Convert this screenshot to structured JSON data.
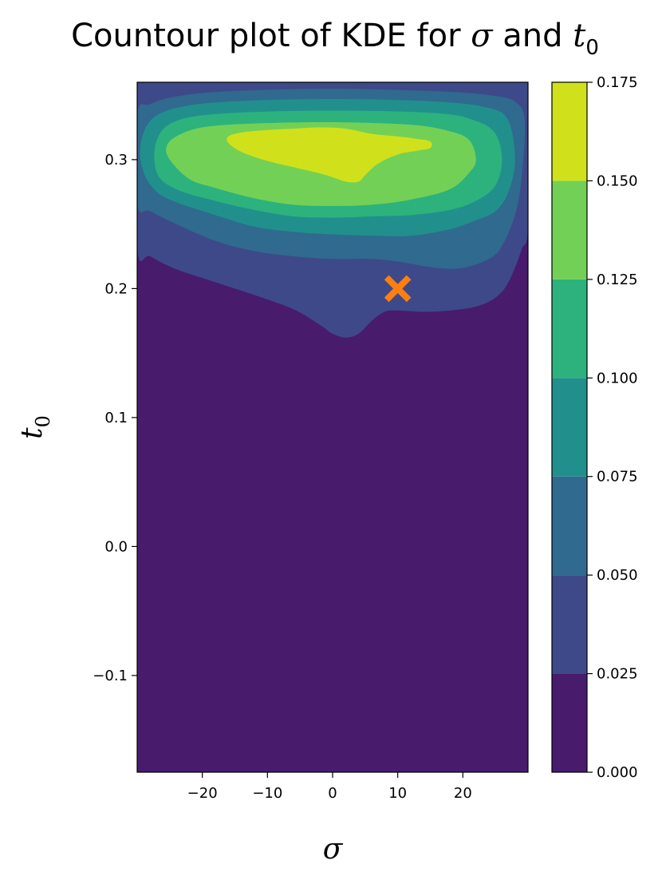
{
  "chart_data": {
    "type": "contour",
    "title": {
      "text": "Countour plot of KDE for ",
      "symbol_1": "σ",
      "connector": " and ",
      "symbol_2": "t",
      "symbol_2_subscript": "0"
    },
    "xlabel": "σ",
    "ylabel": {
      "symbol": "t",
      "subscript": "0"
    },
    "xlim": [
      -30,
      30
    ],
    "ylim": [
      -0.175,
      0.36
    ],
    "x_ticks": [
      {
        "value": -20,
        "label": "−20"
      },
      {
        "value": -10,
        "label": "−10"
      },
      {
        "value": 0,
        "label": "0"
      },
      {
        "value": 10,
        "label": "10"
      },
      {
        "value": 20,
        "label": "20"
      }
    ],
    "y_ticks": [
      {
        "value": -0.1,
        "label": "−0.1"
      },
      {
        "value": 0.0,
        "label": "0.0"
      },
      {
        "value": 0.1,
        "label": "0.1"
      },
      {
        "value": 0.2,
        "label": "0.2"
      },
      {
        "value": 0.3,
        "label": "0.3"
      }
    ],
    "colorbar": {
      "levels": [
        0.0,
        0.025,
        0.05,
        0.075,
        0.1,
        0.125,
        0.15,
        0.175
      ],
      "labels": [
        "0.000",
        "0.025",
        "0.050",
        "0.075",
        "0.100",
        "0.125",
        "0.150",
        "0.175"
      ],
      "colors": [
        "#481b6d",
        "#3e4989",
        "#306a8e",
        "#21908d",
        "#2db27d",
        "#73d056",
        "#d0e11c"
      ]
    },
    "contours": [
      {
        "level": 0.025,
        "points": [
          [
            -30,
            0.233
          ],
          [
            -28,
            0.225
          ],
          [
            -24,
            0.215
          ],
          [
            -18,
            0.205
          ],
          [
            -12,
            0.195
          ],
          [
            -6,
            0.184
          ],
          [
            -2,
            0.172
          ],
          [
            0,
            0.165
          ],
          [
            2,
            0.162
          ],
          [
            4,
            0.165
          ],
          [
            6,
            0.175
          ],
          [
            8,
            0.182
          ],
          [
            10,
            0.183
          ],
          [
            14,
            0.182
          ],
          [
            18,
            0.183
          ],
          [
            22,
            0.186
          ],
          [
            25,
            0.193
          ],
          [
            27,
            0.205
          ],
          [
            29,
            0.23
          ],
          [
            30,
            0.25
          ],
          [
            30,
            0.36
          ],
          [
            -30,
            0.36
          ]
        ]
      },
      {
        "level": 0.05,
        "points": [
          [
            -30,
            0.266
          ],
          [
            -28,
            0.26
          ],
          [
            -24,
            0.25
          ],
          [
            -18,
            0.237
          ],
          [
            -12,
            0.229
          ],
          [
            -6,
            0.225
          ],
          [
            0,
            0.223
          ],
          [
            6,
            0.223
          ],
          [
            10,
            0.221
          ],
          [
            16,
            0.216
          ],
          [
            20,
            0.216
          ],
          [
            24,
            0.223
          ],
          [
            26,
            0.233
          ],
          [
            28,
            0.257
          ],
          [
            29,
            0.285
          ],
          [
            29.5,
            0.33
          ],
          [
            28,
            0.345
          ],
          [
            24,
            0.35
          ],
          [
            16,
            0.353
          ],
          [
            0,
            0.355
          ],
          [
            -16,
            0.353
          ],
          [
            -24,
            0.349
          ],
          [
            -28,
            0.343
          ],
          [
            -30,
            0.335
          ]
        ]
      },
      {
        "level": 0.075,
        "points": [
          [
            -29,
            0.29
          ],
          [
            -27,
            0.275
          ],
          [
            -24,
            0.267
          ],
          [
            -18,
            0.257
          ],
          [
            -12,
            0.248
          ],
          [
            -6,
            0.244
          ],
          [
            0,
            0.242
          ],
          [
            6,
            0.241
          ],
          [
            12,
            0.241
          ],
          [
            18,
            0.246
          ],
          [
            22,
            0.253
          ],
          [
            25,
            0.26
          ],
          [
            27,
            0.275
          ],
          [
            28,
            0.3
          ],
          [
            27,
            0.33
          ],
          [
            24,
            0.34
          ],
          [
            16,
            0.345
          ],
          [
            0,
            0.347
          ],
          [
            -16,
            0.345
          ],
          [
            -24,
            0.34
          ],
          [
            -28,
            0.33
          ],
          [
            -29.5,
            0.31
          ]
        ]
      },
      {
        "level": 0.1,
        "points": [
          [
            -27,
            0.29
          ],
          [
            -24,
            0.277
          ],
          [
            -18,
            0.268
          ],
          [
            -12,
            0.261
          ],
          [
            -6,
            0.256
          ],
          [
            0,
            0.255
          ],
          [
            6,
            0.256
          ],
          [
            12,
            0.257
          ],
          [
            18,
            0.261
          ],
          [
            22,
            0.268
          ],
          [
            25,
            0.28
          ],
          [
            26,
            0.3
          ],
          [
            25,
            0.32
          ],
          [
            22,
            0.33
          ],
          [
            16,
            0.336
          ],
          [
            0,
            0.338
          ],
          [
            -16,
            0.336
          ],
          [
            -24,
            0.33
          ],
          [
            -27,
            0.315
          ]
        ]
      },
      {
        "level": 0.125,
        "points": [
          [
            -25,
            0.3
          ],
          [
            -22,
            0.285
          ],
          [
            -18,
            0.278
          ],
          [
            -12,
            0.27
          ],
          [
            -6,
            0.265
          ],
          [
            0,
            0.264
          ],
          [
            6,
            0.265
          ],
          [
            12,
            0.269
          ],
          [
            18,
            0.277
          ],
          [
            21,
            0.29
          ],
          [
            22,
            0.3
          ],
          [
            21,
            0.315
          ],
          [
            18,
            0.322
          ],
          [
            12,
            0.327
          ],
          [
            0,
            0.329
          ],
          [
            -12,
            0.328
          ],
          [
            -20,
            0.325
          ],
          [
            -24,
            0.318
          ],
          [
            -25.5,
            0.31
          ]
        ]
      },
      {
        "level": 0.15,
        "points": [
          [
            -16,
            0.313
          ],
          [
            -14,
            0.306
          ],
          [
            -10,
            0.299
          ],
          [
            -5,
            0.293
          ],
          [
            -1,
            0.288
          ],
          [
            2,
            0.283
          ],
          [
            4,
            0.283
          ],
          [
            5,
            0.288
          ],
          [
            7,
            0.297
          ],
          [
            10,
            0.304
          ],
          [
            13,
            0.307
          ],
          [
            15,
            0.309
          ],
          [
            15,
            0.314
          ],
          [
            13,
            0.316
          ],
          [
            10,
            0.318
          ],
          [
            6,
            0.32
          ],
          [
            2,
            0.324
          ],
          [
            -2,
            0.325
          ],
          [
            -6,
            0.324
          ],
          [
            -10,
            0.323
          ],
          [
            -14,
            0.321
          ],
          [
            -16,
            0.318
          ]
        ]
      }
    ],
    "marker": {
      "x": 10,
      "y": 0.2,
      "shape": "x",
      "color": "#ff7f0e"
    }
  }
}
